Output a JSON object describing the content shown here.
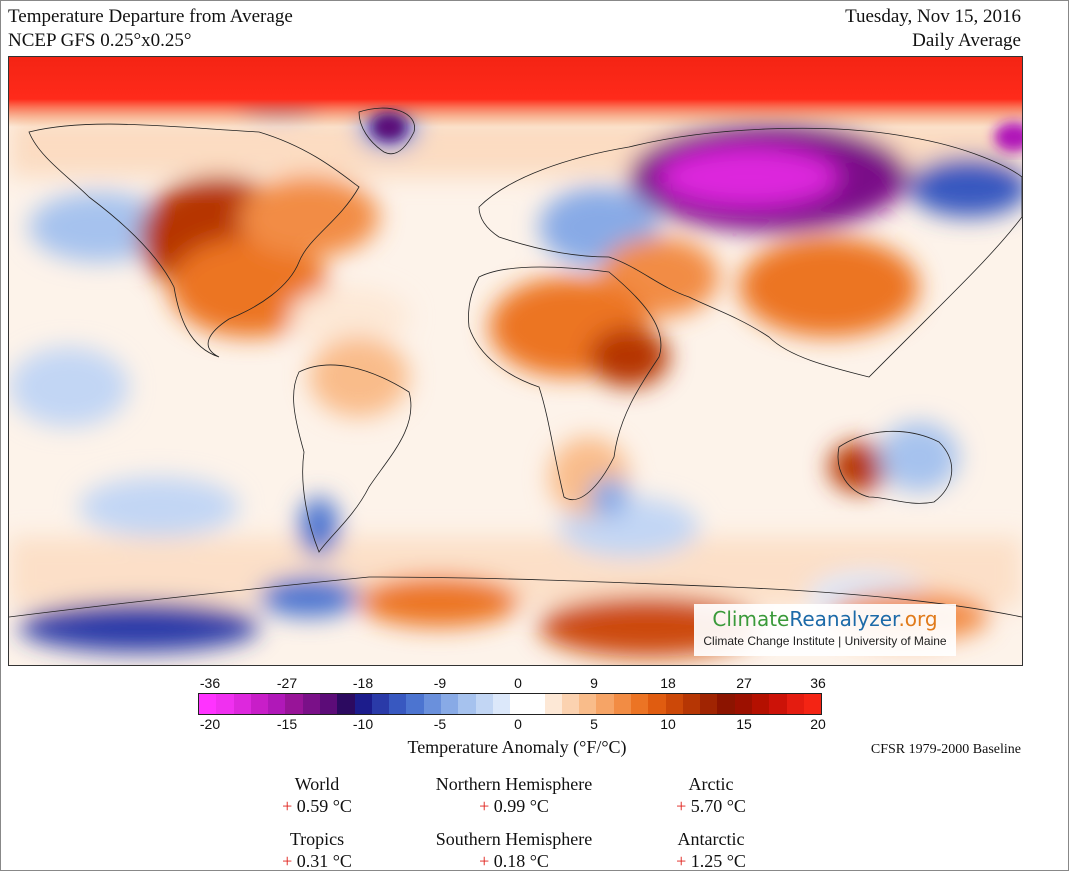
{
  "header": {
    "title": "Temperature Departure from Average",
    "subtitle": "NCEP GFS 0.25°x0.25°",
    "date": "Tuesday, Nov 15, 2016",
    "period": "Daily Average"
  },
  "logo": {
    "name_part1": "Climate",
    "name_part2": "Reanalyzer",
    "name_part3": ".org",
    "tagline": "Climate Change Institute | University of Maine"
  },
  "colorbar": {
    "fahrenheit_ticks": [
      "-36",
      "-27",
      "-18",
      "-9",
      "0",
      "9",
      "18",
      "27",
      "36"
    ],
    "celsius_ticks": [
      "-20",
      "-15",
      "-10",
      "-5",
      "0",
      "5",
      "10",
      "15",
      "20"
    ],
    "title": "Temperature Anomaly (°F/°C)",
    "baseline": "CFSR 1979-2000 Baseline",
    "colors": [
      "#ff33ff",
      "#f030f0",
      "#dd28dd",
      "#c81ec8",
      "#b018b8",
      "#981498",
      "#7a1088",
      "#5c0c78",
      "#2c0a60",
      "#1c1c8c",
      "#2a3aa8",
      "#3858c0",
      "#4c74d0",
      "#6a90dc",
      "#88aae6",
      "#a6c2ee",
      "#c2d6f4",
      "#dce8fa",
      "#ffffff",
      "#ffffff",
      "#fde8d6",
      "#fbd2b0",
      "#f9bc8a",
      "#f6a466",
      "#f28c44",
      "#ec7424",
      "#e05c10",
      "#cc4808",
      "#b63604",
      "#a02402",
      "#8c1400",
      "#9c1000",
      "#b41000",
      "#cc1208",
      "#e41c10",
      "#f42414"
    ]
  },
  "stats": [
    {
      "label": "World",
      "sign": "+",
      "value": "0.59 °C"
    },
    {
      "label": "Northern Hemisphere",
      "sign": "+",
      "value": "0.99 °C"
    },
    {
      "label": "Arctic",
      "sign": "+",
      "value": "5.70 °C"
    },
    {
      "label": "Tropics",
      "sign": "+",
      "value": "0.31 °C"
    },
    {
      "label": "Southern Hemisphere",
      "sign": "+",
      "value": "0.18 °C"
    },
    {
      "label": "Antarctic",
      "sign": "+",
      "value": "1.25 °C"
    }
  ]
}
